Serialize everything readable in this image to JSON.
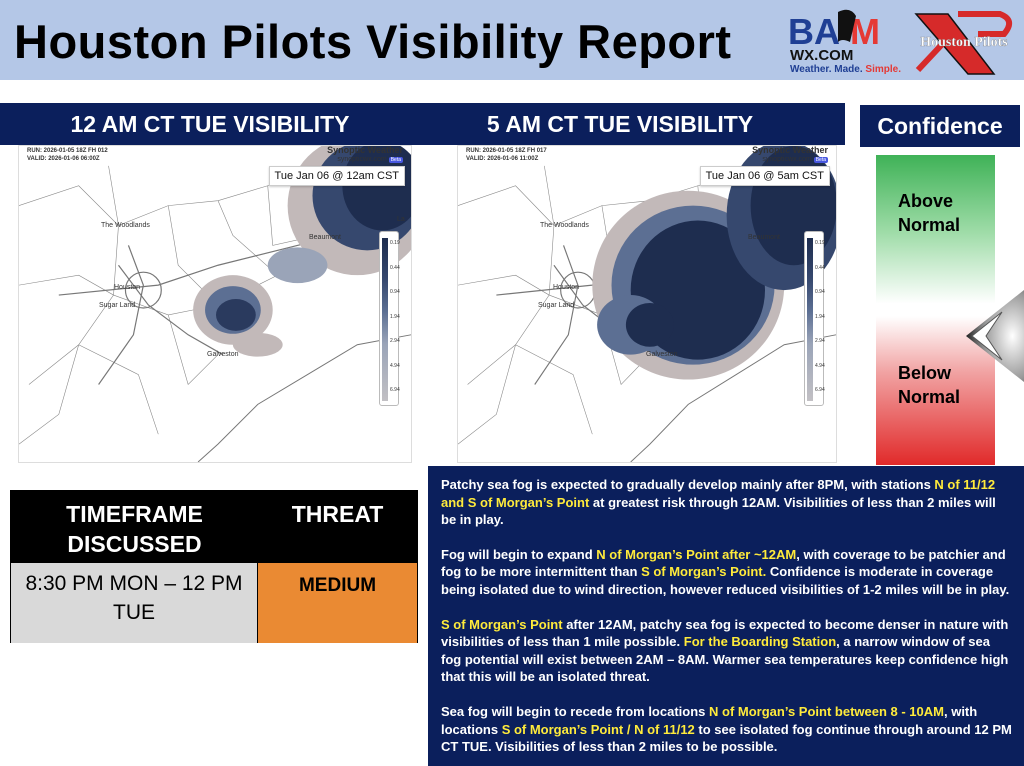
{
  "header": {
    "title": "Houston Pilots Visibility Report",
    "logos": {
      "bam_top": "BAM",
      "bam_domain": "WX.COM",
      "bam_tagline": [
        "Weather.",
        "Made.",
        "Simple."
      ],
      "pilots": "Houston Pilots"
    }
  },
  "maps": [
    {
      "banner": "12 AM CT TUE VISIBILITY",
      "run": "RUN: 2026-01-05 18Z FH 012",
      "valid": "VALID: 2026-01-06 06:00Z",
      "brand": "Synoptic Weather",
      "site": "synopticwx.com",
      "beta": "Beta",
      "stamp": "Tue Jan 06 @ 12am CST"
    },
    {
      "banner": "5 AM CT TUE VISIBILITY",
      "run": "RUN: 2026-01-05 18Z FH 017",
      "valid": "VALID: 2026-01-06 11:00Z",
      "brand": "Synoptic Weather",
      "site": "synopticwx.com",
      "beta": "Beta",
      "stamp": "Tue Jan 06 @ 5am CST"
    }
  ],
  "map_labels": {
    "woodlands": "The Woodlands",
    "houston": "Houston",
    "sugarland": "Sugar Land",
    "galveston": "Galveston",
    "beaumont": "Beaumont",
    "lake": "La"
  },
  "legend_values": [
    "0.19",
    "0.44",
    "0.94",
    "1.94",
    "2.94",
    "4.94",
    "6.94"
  ],
  "confidence": {
    "title": "Confidence",
    "above": "Above Normal",
    "below": "Below Normal",
    "level": "slightly below normal"
  },
  "table": {
    "col1": "TIMEFRAME DISCUSSED",
    "col2": "THREAT",
    "timeframe": "8:30 PM MON – 12 PM TUE",
    "threat": "MEDIUM",
    "threat_color": "#ea8a33"
  },
  "discussion": [
    [
      {
        "t": "Patchy sea fog is expected to gradually develop mainly after 8PM, with stations "
      },
      {
        "t": "N of 11/12 and S of Morgan’s Point",
        "h": 1
      },
      {
        "t": " at greatest risk through 12AM. Visibilities of less than 2 miles will be in play."
      }
    ],
    [
      {
        "t": "Fog will begin to expand "
      },
      {
        "t": "N of Morgan’s Point after ~12AM",
        "h": 1
      },
      {
        "t": ", with coverage to be patchier and fog to be more intermittent than "
      },
      {
        "t": "S of Morgan’s Point.",
        "h": 1
      },
      {
        "t": " Confidence is moderate in coverage being isolated due to wind direction, however reduced visibilities of 1-2 miles will be in play."
      }
    ],
    [
      {
        "t": "S of Morgan’s Point",
        "h": 1
      },
      {
        "t": " after 12AM, patchy sea fog is expected to become denser in nature with visibilities of less than 1 mile possible. "
      },
      {
        "t": "For the Boarding Station",
        "h": 1
      },
      {
        "t": ", a narrow window of sea fog potential will exist between 2AM – 8AM. Warmer sea temperatures keep confidence high that this will be an isolated threat."
      }
    ],
    [
      {
        "t": "Sea fog will begin to recede from locations "
      },
      {
        "t": "N of Morgan’s Point between 8 - 10AM",
        "h": 1
      },
      {
        "t": ", with locations "
      },
      {
        "t": "S of Morgan’s Point / N of 11/12",
        "h": 1
      },
      {
        "t": " to see isolated fog continue through around 12 PM CT TUE. Visibilities of less than 2 miles to be possible."
      }
    ]
  ]
}
